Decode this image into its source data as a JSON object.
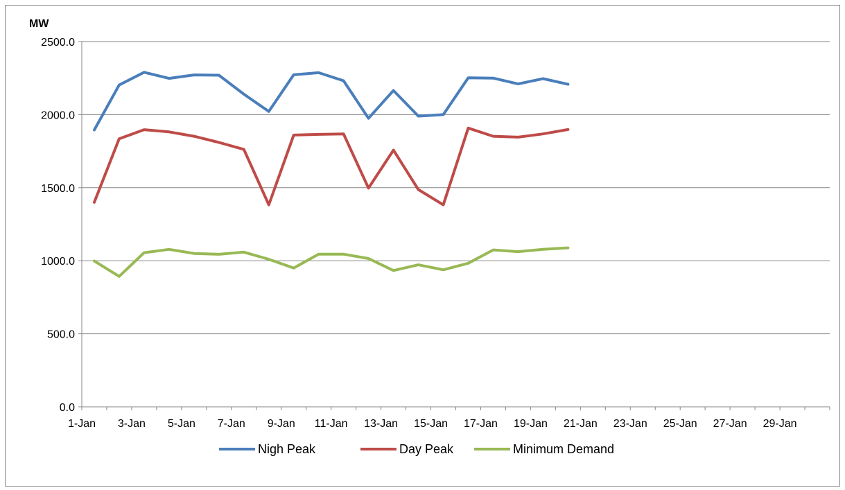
{
  "chart_data": {
    "type": "line",
    "ylabel": "MW",
    "ylim": [
      0,
      2500
    ],
    "yticks": [
      "0.0",
      "500.0",
      "1000.0",
      "1500.0",
      "2000.0",
      "2500.0"
    ],
    "xlim_days": [
      1,
      31
    ],
    "x_tick_labels": [
      "1-Jan",
      "3-Jan",
      "5-Jan",
      "7-Jan",
      "9-Jan",
      "11-Jan",
      "13-Jan",
      "15-Jan",
      "17-Jan",
      "19-Jan",
      "21-Jan",
      "23-Jan",
      "25-Jan",
      "27-Jan",
      "29-Jan"
    ],
    "categories": [
      "1-Jan",
      "2-Jan",
      "3-Jan",
      "4-Jan",
      "5-Jan",
      "6-Jan",
      "7-Jan",
      "8-Jan",
      "9-Jan",
      "10-Jan",
      "11-Jan",
      "12-Jan",
      "13-Jan",
      "14-Jan",
      "15-Jan",
      "16-Jan",
      "17-Jan",
      "18-Jan",
      "19-Jan",
      "20-Jan"
    ],
    "grid": true,
    "legend_position": "bottom",
    "series": [
      {
        "name": "Nigh Peak",
        "color": "#4a7ebb",
        "values": [
          1895,
          2203,
          2290,
          2248,
          2272,
          2270,
          2140,
          2022,
          2273,
          2287,
          2232,
          1975,
          2165,
          1990,
          2000,
          2252,
          2250,
          2210,
          2246,
          2208
        ]
      },
      {
        "name": "Day Peak",
        "color": "#be4b48",
        "values": [
          1400,
          1835,
          1897,
          1882,
          1852,
          1810,
          1762,
          1383,
          1860,
          1865,
          1868,
          1497,
          1757,
          1487,
          1383,
          1908,
          1852,
          1846,
          1868,
          1898
        ]
      },
      {
        "name": "Minimum Demand",
        "color": "#98b954",
        "values": [
          998,
          893,
          1055,
          1078,
          1050,
          1044,
          1059,
          1010,
          950,
          1045,
          1045,
          1015,
          933,
          972,
          938,
          983,
          1074,
          1062,
          1078,
          1088
        ]
      }
    ]
  }
}
